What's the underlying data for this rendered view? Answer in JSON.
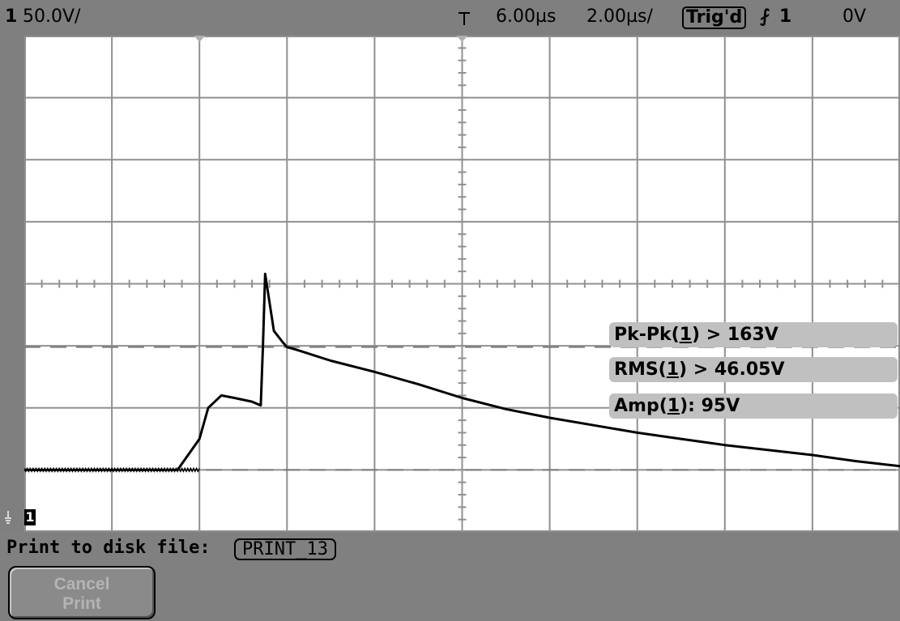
{
  "status_bar": {
    "channel_number": "1",
    "vertical_scale": "50.0V/",
    "trigger_position_marker": "trigger-arrow",
    "time_delay": "6.00µs",
    "time_scale": "2.00µs/",
    "trigger_status": "Trig'd",
    "trigger_slope": "falling-edge",
    "trigger_slope_glyph": "⨏",
    "trigger_source": "1",
    "trigger_level": "0V"
  },
  "measurements": [
    {
      "name": "Pk-Pk(",
      "channel": "1",
      "rest": ") > 163V"
    },
    {
      "name": "RMS(",
      "channel": "1",
      "rest": ") > 46.05V"
    },
    {
      "name": "Amp(",
      "channel": "1",
      "rest": "): 95V"
    }
  ],
  "channel_marker": {
    "label": "1",
    "icon": "ground-reference-icon"
  },
  "message_bar": {
    "label": "Print to disk file:",
    "filename": "PRINT_13"
  },
  "softkeys": [
    {
      "line1": "Cancel",
      "line2": "Print",
      "enabled": false
    }
  ],
  "colors": {
    "screen_bg": "#ffffff",
    "bezel": "#7f7f7f",
    "grid": "#909090",
    "trace": "#000000",
    "measurement_bg": "#c0c0c0",
    "disabled_text": "#b4b4b4"
  },
  "chart_data": {
    "type": "line",
    "title": "",
    "xlabel": "",
    "ylabel": "",
    "xlim": [
      -4,
      16
    ],
    "x_unit": "µs",
    "ylim": [
      -50,
      350
    ],
    "y_unit": "V",
    "grid": true,
    "legend": "none",
    "x": [
      -4,
      -1.5,
      -0.5,
      0.0,
      0.2,
      0.5,
      0.8,
      1.2,
      1.4,
      1.45,
      1.5,
      1.7,
      1.9,
      2.0,
      2.2,
      3.0,
      4.0,
      5.0,
      6.0,
      7.0,
      8.0,
      9.0,
      10.0,
      11.0,
      12.0,
      13.0,
      14.0,
      15.0,
      16.0
    ],
    "y": [
      0,
      0,
      0,
      25,
      50,
      60,
      58,
      55,
      52,
      100,
      158,
      112,
      103,
      99,
      97,
      88,
      79,
      69,
      58,
      49,
      42,
      36,
      30,
      25,
      20,
      16,
      12,
      7,
      3
    ]
  }
}
